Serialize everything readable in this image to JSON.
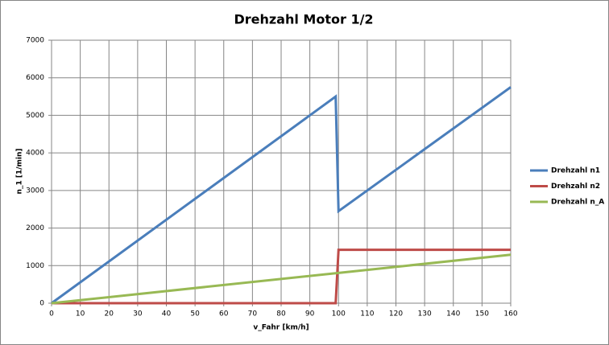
{
  "chart_data": {
    "type": "line",
    "title": "Drehzahl Motor 1/2",
    "x_label": "v_Fahr  [km/h]",
    "y_label": "n_1  [1/min]",
    "x": [
      0,
      99,
      100,
      160
    ],
    "series": [
      {
        "name": "Drehzahl n1",
        "color": "#4a7ebb",
        "values": [
          0,
          5500,
          2450,
          5750
        ]
      },
      {
        "name": "Drehzahl n2",
        "color": "#be4b48",
        "values": [
          0,
          0,
          1420,
          1420
        ]
      },
      {
        "name": "Drehzahl n_A",
        "color": "#98b954",
        "values": [
          0,
          798,
          806,
          1290
        ]
      }
    ],
    "xlim": [
      0,
      160
    ],
    "xticks": [
      0,
      10,
      20,
      30,
      40,
      50,
      60,
      70,
      80,
      90,
      100,
      110,
      120,
      130,
      140,
      150,
      160
    ],
    "ylim": [
      0,
      7000
    ],
    "yticks": [
      0,
      1000,
      2000,
      3000,
      4000,
      5000,
      6000,
      7000
    ],
    "grid": true,
    "legend": "right"
  }
}
